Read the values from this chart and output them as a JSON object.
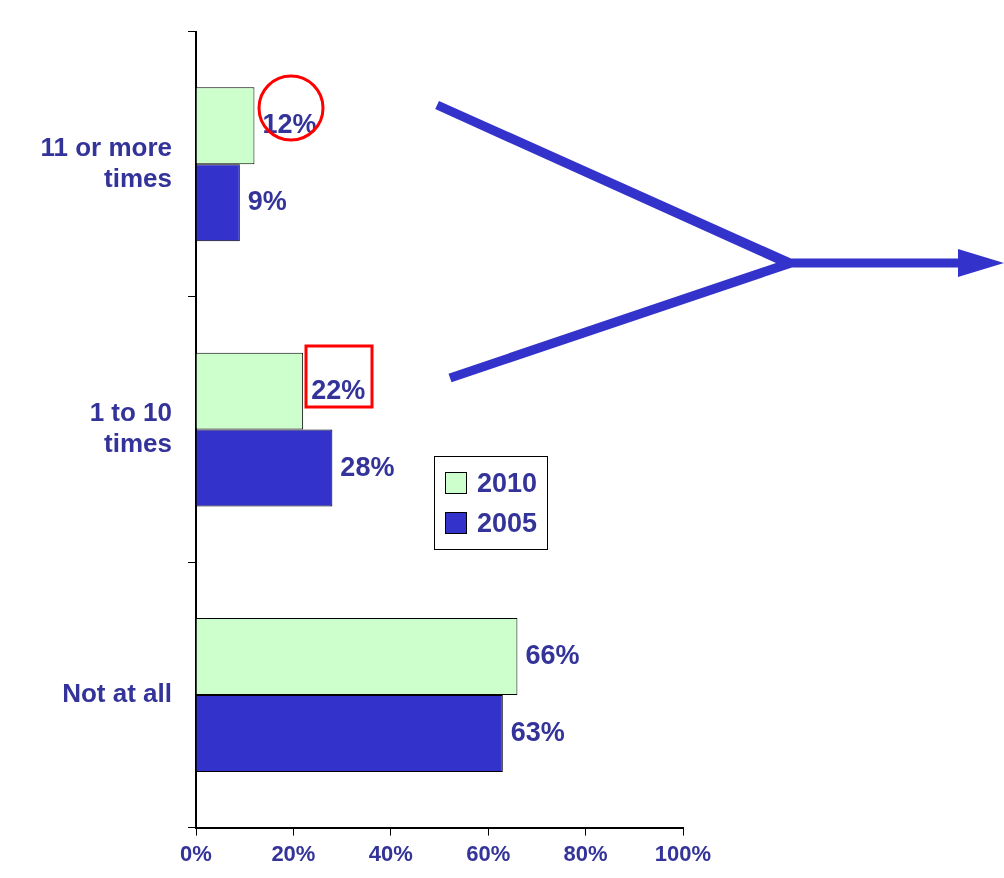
{
  "chart_data": {
    "type": "bar",
    "orientation": "horizontal",
    "categories": [
      "11 or more times",
      "1 to 10 times",
      "Not at all"
    ],
    "series": [
      {
        "name": "2010",
        "color": "#ccffcc",
        "values": [
          12,
          22,
          66
        ],
        "value_labels": [
          "12%",
          "22%",
          "66%"
        ]
      },
      {
        "name": "2005",
        "color": "#3333cc",
        "values": [
          9,
          28,
          63
        ],
        "value_labels": [
          "9%",
          "28%",
          "63%"
        ]
      }
    ],
    "xlim": [
      0,
      100
    ],
    "xticks": [
      {
        "value": 0,
        "label": "0%"
      },
      {
        "value": 20,
        "label": "20%"
      },
      {
        "value": 40,
        "label": "40%"
      },
      {
        "value": 60,
        "label": "60%"
      },
      {
        "value": 80,
        "label": "80%"
      },
      {
        "value": 100,
        "label": "100%"
      }
    ],
    "grid": false,
    "legend": "right"
  }
}
